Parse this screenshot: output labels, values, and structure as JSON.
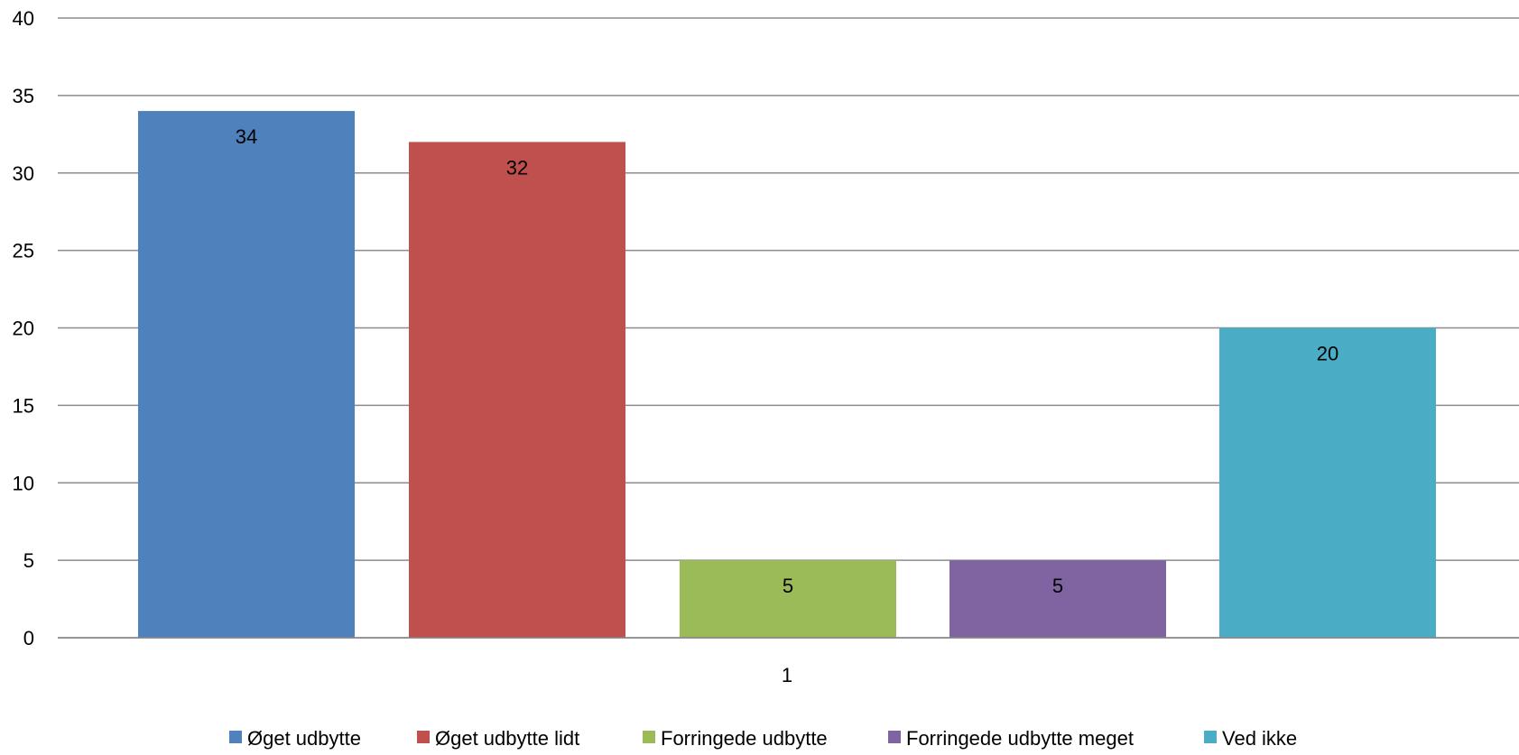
{
  "chart_data": {
    "type": "bar",
    "categories": [
      "1"
    ],
    "series": [
      {
        "name": "Øget udbytte",
        "values": [
          34
        ],
        "label": "34",
        "color": "#4F81BD"
      },
      {
        "name": "Øget udbytte lidt",
        "values": [
          32
        ],
        "label": "32",
        "color": "#C0504D"
      },
      {
        "name": "Forringede udbytte",
        "values": [
          5
        ],
        "label": "5",
        "color": "#9BBB59"
      },
      {
        "name": "Forringede udbytte meget",
        "values": [
          5
        ],
        "label": "5",
        "color": "#8064A2"
      },
      {
        "name": "Ved ikke",
        "values": [
          20
        ],
        "label": "20",
        "color": "#4BACC6"
      }
    ],
    "ylim": [
      0,
      40
    ],
    "yticks": [
      0,
      5,
      10,
      15,
      20,
      25,
      30,
      35,
      40
    ],
    "title": "",
    "xlabel": "",
    "ylabel": "",
    "grid": true,
    "legend_position": "bottom"
  }
}
